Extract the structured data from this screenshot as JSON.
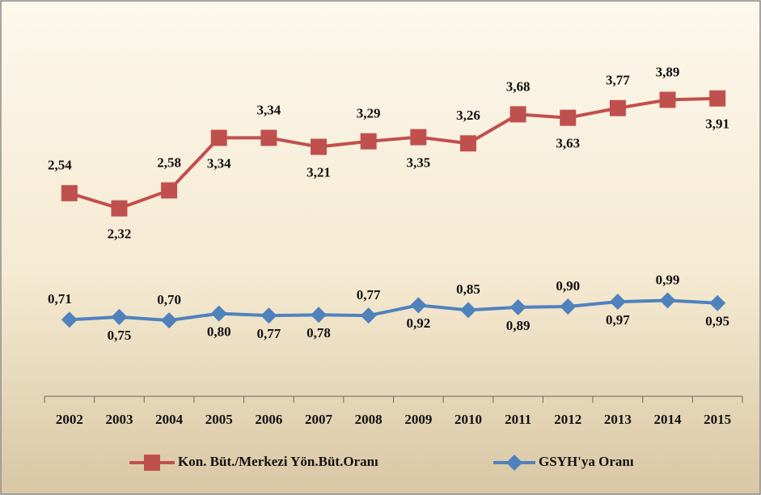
{
  "chart_data": {
    "type": "line",
    "categories": [
      "2002",
      "2003",
      "2004",
      "2005",
      "2006",
      "2007",
      "2008",
      "2009",
      "2010",
      "2011",
      "2012",
      "2013",
      "2014",
      "2015"
    ],
    "series": [
      {
        "name": "Kon. Büt./Merkezi Yön.Büt.Oranı",
        "color": "#c0504d",
        "marker": "square",
        "values": [
          2.54,
          2.32,
          2.58,
          3.34,
          3.34,
          3.21,
          3.29,
          3.35,
          3.26,
          3.68,
          3.63,
          3.77,
          3.89,
          3.91
        ],
        "value_labels": [
          "2,54",
          "2,32",
          "2,58",
          "3,34",
          "3,34",
          "3,21",
          "3,29",
          "3,35",
          "3,26",
          "3,68",
          "3,63",
          "3,77",
          "3,89",
          "3,91"
        ]
      },
      {
        "name": "GSYH'ya Oranı",
        "color": "#4f81bd",
        "marker": "diamond",
        "values": [
          0.71,
          0.75,
          0.7,
          0.8,
          0.77,
          0.78,
          0.77,
          0.92,
          0.85,
          0.89,
          0.9,
          0.97,
          0.99,
          0.95
        ],
        "value_labels": [
          "0,71",
          "0,75",
          "0,70",
          "0,80",
          "0,77",
          "0,78",
          "0,77",
          "0,92",
          "0,85",
          "0,89",
          "0,90",
          "0,97",
          "0,99",
          "0,95"
        ]
      }
    ],
    "legend": "bottom"
  }
}
